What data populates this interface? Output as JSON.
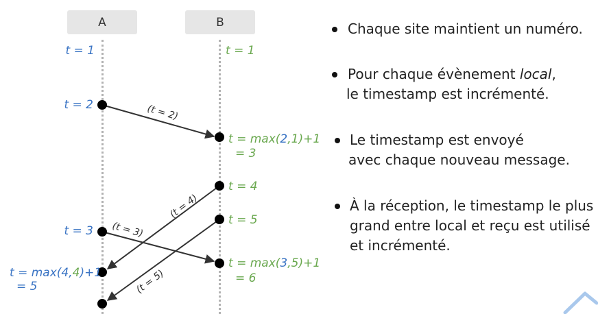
{
  "processes": [
    {
      "id": "A",
      "label": "A"
    },
    {
      "id": "B",
      "label": "B"
    }
  ],
  "timestamps": {
    "a_t1": "t = 1",
    "b_t1": "t = 1",
    "a_t2": "t = 2",
    "b_recv1_l1": [
      "t = max(",
      "2",
      ",",
      "1",
      ")+1"
    ],
    "b_recv1_l2": "= 3",
    "b_t4": "t = 4",
    "b_t5": "t = 5",
    "a_t3": "t = 3",
    "b_recv2_l1": [
      "t = max(",
      "3",
      ",",
      "5",
      ")+1"
    ],
    "b_recv2_l2": "= 6",
    "a_recv_l1": [
      "t = max(",
      "4",
      ",",
      "4",
      ")+1"
    ],
    "a_recv_l2": "= 5"
  },
  "messages": {
    "m1": "(t = 2)",
    "m2": "(t = 4)",
    "m3": "(t = 3)",
    "m4": "(t = 5)"
  },
  "bullets": [
    {
      "lines": [
        [
          "Chaque site maintient un numéro."
        ]
      ]
    },
    {
      "lines": [
        [
          "Pour chaque évènement ",
          {
            "em": "local"
          },
          ","
        ],
        [
          "le timestamp est incrémenté."
        ]
      ]
    },
    {
      "lines": [
        [
          "Le timestamp est envoyé"
        ],
        [
          "avec chaque nouveau message."
        ]
      ]
    },
    {
      "lines": [
        [
          "À la réception, le timestamp le plus"
        ],
        [
          "grand entre local et reçu est utilisé"
        ],
        [
          "et incrémenté."
        ]
      ]
    }
  ],
  "colors": {
    "site_a": "#3a74c4",
    "site_b": "#6aa84f",
    "arrow": "#333333",
    "node": "#000000",
    "header_bg": "#e6e6e6",
    "lifeline": "#b3b3b3",
    "chevron": "#a9c8ec"
  },
  "icons": {
    "decorative": "chevron-up-icon"
  }
}
